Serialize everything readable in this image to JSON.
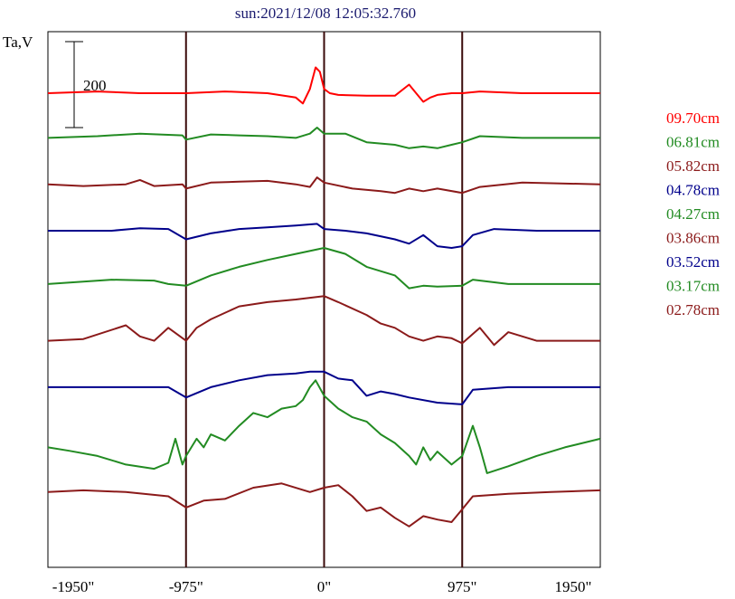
{
  "chart_data": {
    "type": "line",
    "title": "sun:2021/12/08 12:05:32.760",
    "ylabel": "Ta,V",
    "scale_bar_label": "200",
    "x_ticks": [
      {
        "value": -1950,
        "label": "-1950\""
      },
      {
        "value": -975,
        "label": "-975\""
      },
      {
        "value": 0,
        "label": "0\""
      },
      {
        "value": 975,
        "label": "975\""
      },
      {
        "value": 1950,
        "label": "1950\""
      }
    ],
    "xlim": [
      -1950,
      1950
    ],
    "vertical_lines": [
      -975,
      0,
      975
    ],
    "series": [
      {
        "name": "09.70cm",
        "color": "#ff0000",
        "baseline": 0,
        "points": [
          [
            -1950,
            0
          ],
          [
            -1600,
            2
          ],
          [
            -1300,
            0
          ],
          [
            -975,
            0
          ],
          [
            -700,
            2
          ],
          [
            -400,
            0
          ],
          [
            -200,
            -5
          ],
          [
            -150,
            -12
          ],
          [
            -100,
            5
          ],
          [
            -60,
            30
          ],
          [
            -30,
            25
          ],
          [
            0,
            5
          ],
          [
            40,
            0
          ],
          [
            100,
            -2
          ],
          [
            300,
            -3
          ],
          [
            400,
            -3
          ],
          [
            500,
            -3
          ],
          [
            600,
            10
          ],
          [
            650,
            0
          ],
          [
            700,
            -10
          ],
          [
            750,
            -5
          ],
          [
            800,
            -2
          ],
          [
            900,
            0
          ],
          [
            975,
            0
          ],
          [
            1100,
            2
          ],
          [
            1400,
            0
          ],
          [
            1950,
            0
          ]
        ]
      },
      {
        "name": "06.81cm",
        "color": "#228b22",
        "baseline": -52,
        "points": [
          [
            -1950,
            0
          ],
          [
            -1600,
            2
          ],
          [
            -1300,
            5
          ],
          [
            -1000,
            3
          ],
          [
            -975,
            -2
          ],
          [
            -800,
            4
          ],
          [
            -600,
            3
          ],
          [
            -400,
            2
          ],
          [
            -200,
            0
          ],
          [
            -100,
            5
          ],
          [
            -50,
            12
          ],
          [
            0,
            5
          ],
          [
            150,
            5
          ],
          [
            300,
            -5
          ],
          [
            500,
            -8
          ],
          [
            600,
            -12
          ],
          [
            700,
            -10
          ],
          [
            800,
            -12
          ],
          [
            900,
            -8
          ],
          [
            975,
            -5
          ],
          [
            1100,
            2
          ],
          [
            1400,
            0
          ],
          [
            1950,
            0
          ]
        ]
      },
      {
        "name": "05.82cm",
        "color": "#8b1a1a",
        "baseline": -106,
        "points": [
          [
            -1950,
            0
          ],
          [
            -1700,
            -2
          ],
          [
            -1400,
            0
          ],
          [
            -1300,
            5
          ],
          [
            -1200,
            -2
          ],
          [
            -1000,
            0
          ],
          [
            -975,
            -5
          ],
          [
            -800,
            2
          ],
          [
            -600,
            3
          ],
          [
            -400,
            4
          ],
          [
            -200,
            0
          ],
          [
            -100,
            -3
          ],
          [
            -50,
            8
          ],
          [
            0,
            2
          ],
          [
            200,
            -5
          ],
          [
            400,
            -8
          ],
          [
            500,
            -10
          ],
          [
            600,
            -5
          ],
          [
            700,
            -8
          ],
          [
            800,
            -5
          ],
          [
            975,
            -10
          ],
          [
            1100,
            -3
          ],
          [
            1400,
            2
          ],
          [
            1950,
            0
          ]
        ]
      },
      {
        "name": "04.78cm",
        "color": "#00008b",
        "baseline": -160,
        "points": [
          [
            -1950,
            0
          ],
          [
            -1500,
            0
          ],
          [
            -1300,
            3
          ],
          [
            -1100,
            2
          ],
          [
            -975,
            -10
          ],
          [
            -800,
            -3
          ],
          [
            -600,
            2
          ],
          [
            -400,
            4
          ],
          [
            -200,
            6
          ],
          [
            -50,
            8
          ],
          [
            0,
            2
          ],
          [
            150,
            0
          ],
          [
            300,
            -3
          ],
          [
            500,
            -10
          ],
          [
            600,
            -15
          ],
          [
            700,
            -5
          ],
          [
            800,
            -18
          ],
          [
            900,
            -20
          ],
          [
            975,
            -18
          ],
          [
            1050,
            -5
          ],
          [
            1200,
            2
          ],
          [
            1500,
            0
          ],
          [
            1950,
            0
          ]
        ]
      },
      {
        "name": "04.27cm",
        "color": "#228b22",
        "baseline": -222,
        "points": [
          [
            -1950,
            0
          ],
          [
            -1500,
            5
          ],
          [
            -1200,
            4
          ],
          [
            -1100,
            0
          ],
          [
            -975,
            -2
          ],
          [
            -800,
            10
          ],
          [
            -600,
            20
          ],
          [
            -400,
            28
          ],
          [
            -200,
            35
          ],
          [
            0,
            42
          ],
          [
            150,
            35
          ],
          [
            300,
            20
          ],
          [
            500,
            10
          ],
          [
            600,
            -5
          ],
          [
            700,
            -2
          ],
          [
            800,
            -3
          ],
          [
            975,
            -2
          ],
          [
            1050,
            5
          ],
          [
            1300,
            0
          ],
          [
            1950,
            0
          ]
        ]
      },
      {
        "name": "03.86cm",
        "color": "#8b1a1a",
        "baseline": -288,
        "points": [
          [
            -1950,
            0
          ],
          [
            -1700,
            2
          ],
          [
            -1400,
            18
          ],
          [
            -1300,
            5
          ],
          [
            -1200,
            0
          ],
          [
            -1100,
            15
          ],
          [
            -975,
            0
          ],
          [
            -900,
            15
          ],
          [
            -800,
            25
          ],
          [
            -600,
            40
          ],
          [
            -400,
            45
          ],
          [
            -200,
            48
          ],
          [
            0,
            52
          ],
          [
            100,
            45
          ],
          [
            300,
            30
          ],
          [
            400,
            20
          ],
          [
            500,
            15
          ],
          [
            600,
            5
          ],
          [
            700,
            0
          ],
          [
            800,
            5
          ],
          [
            900,
            3
          ],
          [
            975,
            -3
          ],
          [
            1100,
            15
          ],
          [
            1200,
            -5
          ],
          [
            1300,
            10
          ],
          [
            1500,
            0
          ],
          [
            1950,
            0
          ]
        ]
      },
      {
        "name": "03.52cm",
        "color": "#00008b",
        "baseline": -342,
        "points": [
          [
            -1950,
            0
          ],
          [
            -1500,
            0
          ],
          [
            -1100,
            0
          ],
          [
            -975,
            -12
          ],
          [
            -800,
            0
          ],
          [
            -600,
            8
          ],
          [
            -400,
            14
          ],
          [
            -200,
            16
          ],
          [
            -100,
            18
          ],
          [
            0,
            18
          ],
          [
            100,
            10
          ],
          [
            200,
            8
          ],
          [
            300,
            -10
          ],
          [
            400,
            -5
          ],
          [
            500,
            -8
          ],
          [
            600,
            -12
          ],
          [
            800,
            -18
          ],
          [
            975,
            -20
          ],
          [
            1050,
            -3
          ],
          [
            1300,
            0
          ],
          [
            1950,
            0
          ]
        ]
      },
      {
        "name": "03.17cm",
        "color": "#228b22",
        "baseline": -412,
        "points": [
          [
            -1950,
            0
          ],
          [
            -1800,
            -4
          ],
          [
            -1600,
            -10
          ],
          [
            -1400,
            -20
          ],
          [
            -1200,
            -25
          ],
          [
            -1100,
            -18
          ],
          [
            -1050,
            10
          ],
          [
            -1000,
            -20
          ],
          [
            -975,
            -10
          ],
          [
            -900,
            10
          ],
          [
            -850,
            0
          ],
          [
            -800,
            15
          ],
          [
            -700,
            8
          ],
          [
            -600,
            25
          ],
          [
            -500,
            40
          ],
          [
            -400,
            35
          ],
          [
            -300,
            45
          ],
          [
            -200,
            48
          ],
          [
            -150,
            55
          ],
          [
            -100,
            70
          ],
          [
            -60,
            78
          ],
          [
            0,
            60
          ],
          [
            100,
            45
          ],
          [
            200,
            35
          ],
          [
            300,
            30
          ],
          [
            400,
            15
          ],
          [
            500,
            5
          ],
          [
            600,
            -10
          ],
          [
            650,
            -20
          ],
          [
            700,
            0
          ],
          [
            750,
            -15
          ],
          [
            800,
            -5
          ],
          [
            900,
            -20
          ],
          [
            975,
            -10
          ],
          [
            1050,
            25
          ],
          [
            1100,
            0
          ],
          [
            1150,
            -30
          ],
          [
            1300,
            -22
          ],
          [
            1500,
            -10
          ],
          [
            1700,
            0
          ],
          [
            1950,
            10
          ]
        ]
      },
      {
        "name": "02.78cm",
        "color": "#8b1a1a",
        "baseline": -464,
        "points": [
          [
            -1950,
            0
          ],
          [
            -1700,
            2
          ],
          [
            -1400,
            0
          ],
          [
            -1100,
            -5
          ],
          [
            -975,
            -18
          ],
          [
            -850,
            -10
          ],
          [
            -700,
            -8
          ],
          [
            -500,
            5
          ],
          [
            -300,
            10
          ],
          [
            -100,
            0
          ],
          [
            0,
            5
          ],
          [
            100,
            8
          ],
          [
            200,
            -5
          ],
          [
            300,
            -22
          ],
          [
            400,
            -18
          ],
          [
            500,
            -30
          ],
          [
            600,
            -40
          ],
          [
            700,
            -28
          ],
          [
            800,
            -32
          ],
          [
            900,
            -35
          ],
          [
            975,
            -20
          ],
          [
            1050,
            -5
          ],
          [
            1300,
            -2
          ],
          [
            1600,
            0
          ],
          [
            1950,
            2
          ]
        ]
      }
    ]
  }
}
